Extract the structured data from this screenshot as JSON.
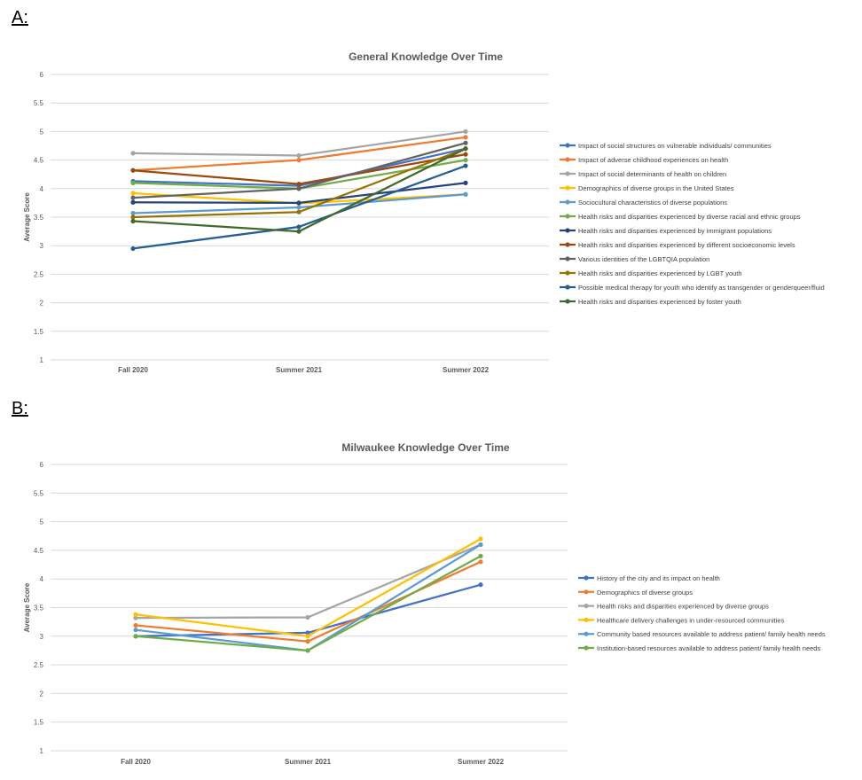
{
  "panel_a_label": "A:",
  "panel_b_label": "B:",
  "chart_data": [
    {
      "type": "line",
      "title": "General Knowledge Over Time",
      "xlabel": "",
      "ylabel": "Average Score",
      "ylim": [
        1,
        6
      ],
      "yticks": [
        "1",
        "1.5",
        "2",
        "2.5",
        "3",
        "3.5",
        "4",
        "4.5",
        "5",
        "5.5",
        "6"
      ],
      "categories": [
        "Fall 2020",
        "Summer 2021",
        "Summer 2022"
      ],
      "grid": true,
      "legend": "right",
      "series": [
        {
          "name": "Impact of social structures on vulnerable individuals/ communities",
          "color": "#4472C4",
          "values": [
            4.13,
            4.05,
            4.7
          ]
        },
        {
          "name": "Impact of adverse childhood experiences on health",
          "color": "#ED7D31",
          "values": [
            4.32,
            4.5,
            4.9
          ]
        },
        {
          "name": "Impact of social determinants of health on children",
          "color": "#A5A5A5",
          "values": [
            4.62,
            4.58,
            5.0
          ]
        },
        {
          "name": "Demographics of diverse groups in the United States",
          "color": "#FFC000",
          "values": [
            3.92,
            3.74,
            3.9
          ]
        },
        {
          "name": "Sociocultural characteristics of diverse populations",
          "color": "#5B9BD5",
          "values": [
            3.57,
            3.67,
            3.9
          ]
        },
        {
          "name": "Health risks and disparities experienced by diverse racial and ethnic groups",
          "color": "#70AD47",
          "values": [
            4.1,
            4.0,
            4.5
          ]
        },
        {
          "name": "Health risks and disparities experienced by immigrant populations",
          "color": "#264478",
          "values": [
            3.76,
            3.75,
            4.1
          ]
        },
        {
          "name": "Health risks and disparities experienced by different socioeconomic levels",
          "color": "#9E480E",
          "values": [
            4.32,
            4.08,
            4.6
          ]
        },
        {
          "name": "Various identities of the LGBTQIA population",
          "color": "#636363",
          "values": [
            3.84,
            4.0,
            4.8
          ]
        },
        {
          "name": "Health risks and disparities experienced by LGBT youth",
          "color": "#997300",
          "values": [
            3.5,
            3.59,
            4.7
          ]
        },
        {
          "name": "Possible medical therapy for youth who identify as transgender or genderqueer/fluid",
          "color": "#255E91",
          "values": [
            2.95,
            3.33,
            4.4
          ]
        },
        {
          "name": "Health risks and disparities experienced by foster youth",
          "color": "#43682B",
          "values": [
            3.43,
            3.25,
            4.7
          ]
        }
      ]
    },
    {
      "type": "line",
      "title": "Milwaukee Knowledge Over Time",
      "xlabel": "",
      "ylabel": "Average Score",
      "ylim": [
        1,
        6
      ],
      "yticks": [
        "1",
        "1.5",
        "2",
        "2.5",
        "3",
        "3.5",
        "4",
        "4.5",
        "5",
        "5.5",
        "6"
      ],
      "categories": [
        "Fall 2020",
        "Summer 2021",
        "Summer 2022"
      ],
      "grid": true,
      "legend": "right",
      "series": [
        {
          "name": "History of the city and its impact on health",
          "color": "#4472C4",
          "values": [
            3.0,
            3.06,
            3.9
          ]
        },
        {
          "name": "Demographics of diverse groups",
          "color": "#ED7D31",
          "values": [
            3.19,
            2.91,
            4.3
          ]
        },
        {
          "name": "Health risks and disparities experienced by diverse groups",
          "color": "#A5A5A5",
          "values": [
            3.32,
            3.33,
            4.6
          ]
        },
        {
          "name": "Healthcare delivery challenges in under-resourced communities",
          "color": "#FFC000",
          "values": [
            3.38,
            3.0,
            4.7
          ]
        },
        {
          "name": "Community based resources available to address patient/ family health needs",
          "color": "#5B9BD5",
          "values": [
            3.11,
            2.75,
            4.6
          ]
        },
        {
          "name": "Institution-based resources available to address patient/ family health needs",
          "color": "#70AD47",
          "values": [
            3.0,
            2.75,
            4.4
          ]
        }
      ]
    }
  ]
}
